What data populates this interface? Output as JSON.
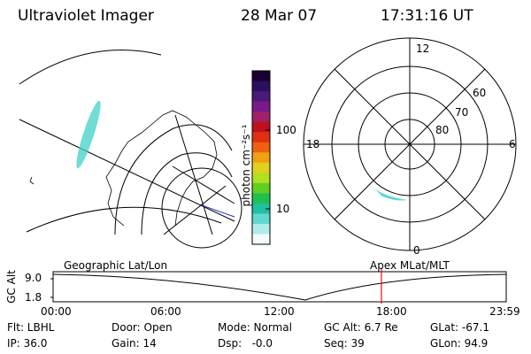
{
  "header": {
    "instrument": "Ultraviolet Imager",
    "date": "28 Mar 07",
    "time": "17:31:16 UT"
  },
  "colorbar": {
    "label": "photon cm⁻²s⁻¹",
    "ticks": [
      "100",
      "10"
    ],
    "colors": [
      "#1a0030",
      "#2a1060",
      "#4a1a7a",
      "#7a1a8a",
      "#a0206a",
      "#c01020",
      "#e03010",
      "#f06010",
      "#f0a010",
      "#e0d020",
      "#b0e020",
      "#60d020",
      "#20c050",
      "#20c0a0",
      "#60d8d0",
      "#b0ecec",
      "#f4fcfc"
    ]
  },
  "polar_plot": {
    "mlt_labels": [
      "12",
      "18",
      "6",
      "0"
    ],
    "mlat_labels": [
      "60",
      "70",
      "80"
    ],
    "aurora_color": "#40d0c8"
  },
  "geo_plot": {
    "aurora_color": "#40d0c8"
  },
  "timeline": {
    "left_label": "Geographic Lat/Lon",
    "right_label": "Apex MLat/MLT",
    "y_axis_title": "GC Alt",
    "y_top": "9.0",
    "y_bottom": "1.8",
    "x_ticks": [
      "00:00",
      "06:00",
      "12:00",
      "18:00",
      "23:59"
    ],
    "marker_time": "17:31",
    "marker_color": "#e01010"
  },
  "info": {
    "filter": "Flt: LBHL",
    "door": "Door: Open",
    "mode": "Mode: Normal",
    "gc_alt": "GC Alt: 6.7 Re",
    "glat": "GLat: -67.1",
    "ip": "IP: 36.0",
    "gain": "Gain: 14",
    "dsp": "Dsp:   -0.0",
    "seq": "Seq: 39",
    "glon": "GLon: 94.9"
  }
}
